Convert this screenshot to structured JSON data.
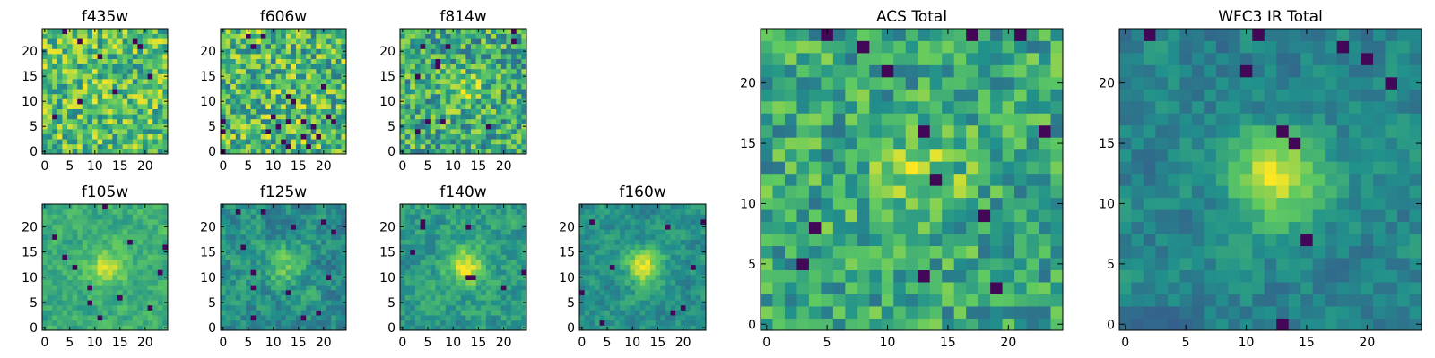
{
  "chart_data": [
    {
      "type": "heatmap",
      "title": "f435w",
      "xlim": [
        -0.5,
        24.5
      ],
      "ylim": [
        -0.5,
        24.5
      ],
      "x_ticks": [
        0,
        5,
        10,
        15,
        20
      ],
      "y_ticks": [
        0,
        5,
        10,
        15,
        20
      ],
      "grid": false,
      "colormap": "viridis"
    },
    {
      "type": "heatmap",
      "title": "f606w",
      "xlim": [
        -0.5,
        24.5
      ],
      "ylim": [
        -0.5,
        24.5
      ],
      "x_ticks": [
        0,
        5,
        10,
        15,
        20
      ],
      "y_ticks": [
        0,
        5,
        10,
        15,
        20
      ],
      "grid": false,
      "colormap": "viridis"
    },
    {
      "type": "heatmap",
      "title": "f814w",
      "xlim": [
        -0.5,
        24.5
      ],
      "ylim": [
        -0.5,
        24.5
      ],
      "x_ticks": [
        0,
        5,
        10,
        15,
        20
      ],
      "y_ticks": [
        0,
        5,
        10,
        15,
        20
      ],
      "grid": false,
      "colormap": "viridis"
    },
    {
      "type": "heatmap",
      "title": "f105w",
      "xlim": [
        -0.5,
        24.5
      ],
      "ylim": [
        -0.5,
        24.5
      ],
      "x_ticks": [
        0,
        5,
        10,
        15,
        20
      ],
      "y_ticks": [
        0,
        5,
        10,
        15,
        20
      ],
      "grid": false,
      "colormap": "viridis"
    },
    {
      "type": "heatmap",
      "title": "f125w",
      "xlim": [
        -0.5,
        24.5
      ],
      "ylim": [
        -0.5,
        24.5
      ],
      "x_ticks": [
        0,
        5,
        10,
        15,
        20
      ],
      "y_ticks": [
        0,
        5,
        10,
        15,
        20
      ],
      "grid": false,
      "colormap": "viridis"
    },
    {
      "type": "heatmap",
      "title": "f140w",
      "xlim": [
        -0.5,
        24.5
      ],
      "ylim": [
        -0.5,
        24.5
      ],
      "x_ticks": [
        0,
        5,
        10,
        15,
        20
      ],
      "y_ticks": [
        0,
        5,
        10,
        15,
        20
      ],
      "grid": false,
      "colormap": "viridis"
    },
    {
      "type": "heatmap",
      "title": "f160w",
      "xlim": [
        -0.5,
        24.5
      ],
      "ylim": [
        -0.5,
        24.5
      ],
      "x_ticks": [
        0,
        5,
        10,
        15,
        20
      ],
      "y_ticks": [
        0,
        5,
        10,
        15,
        20
      ],
      "grid": false,
      "colormap": "viridis"
    },
    {
      "type": "heatmap",
      "title": "ACS Total",
      "xlim": [
        -0.5,
        24.5
      ],
      "ylim": [
        -0.5,
        24.5
      ],
      "x_ticks": [
        0,
        5,
        10,
        15,
        20
      ],
      "y_ticks": [
        0,
        5,
        10,
        15,
        20
      ],
      "grid": false,
      "colormap": "viridis"
    },
    {
      "type": "heatmap",
      "title": "WFC3 IR Total",
      "xlim": [
        -0.5,
        24.5
      ],
      "ylim": [
        -0.5,
        24.5
      ],
      "x_ticks": [
        0,
        5,
        10,
        15,
        20
      ],
      "y_ticks": [
        0,
        5,
        10,
        15,
        20
      ],
      "grid": false,
      "colormap": "viridis"
    }
  ],
  "colors": {
    "colormap_stops": [
      "#440154",
      "#3b528b",
      "#21918c",
      "#5ec962",
      "#fde725"
    ]
  }
}
